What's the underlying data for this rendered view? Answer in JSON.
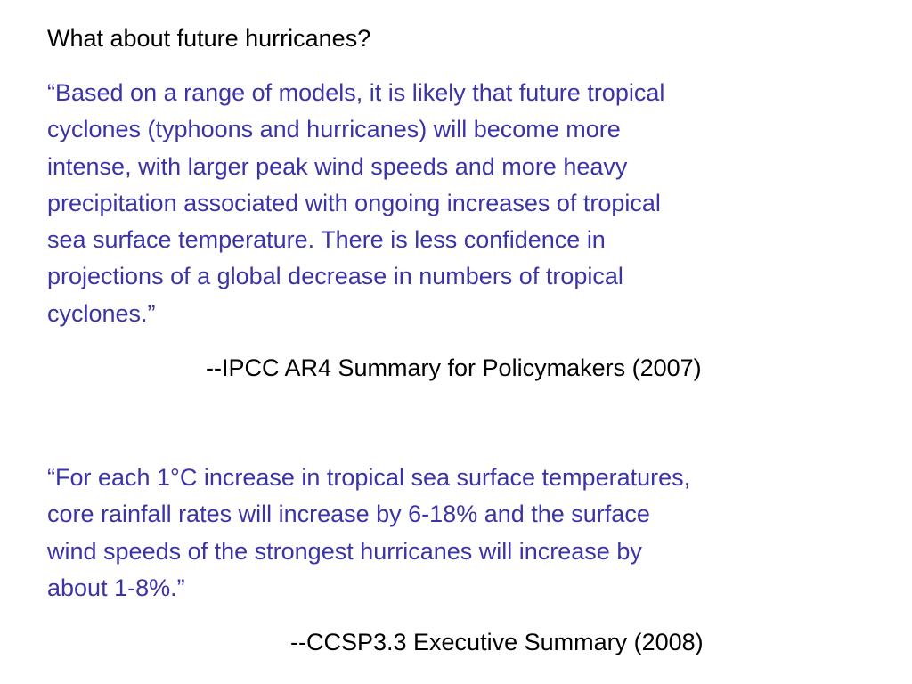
{
  "slide": {
    "heading": "What about future hurricanes?",
    "quotes": [
      {
        "text": "“Based on a range of models, it is likely that future tropical\ncyclones (typhoons and hurricanes) will become more\nintense, with larger peak wind speeds and more heavy\nprecipitation associated with ongoing increases of tropical\nsea surface temperature.  There is less confidence in\nprojections of a global decrease in numbers of tropical\ncyclones.”",
        "attribution": "--IPCC AR4 Summary for Policymakers (2007)"
      },
      {
        "text": "“For each 1°C increase in tropical sea surface temperatures,\ncore rainfall rates will increase by 6-18% and the surface\nwind speeds of the strongest hurricanes will increase by\nabout 1-8%.”",
        "attribution": "--CCSP3.3 Executive Summary (2008)"
      }
    ]
  },
  "colors": {
    "heading": "#000000",
    "quote_text": "#3a34a8",
    "attribution": "#000000",
    "background": "#ffffff"
  }
}
